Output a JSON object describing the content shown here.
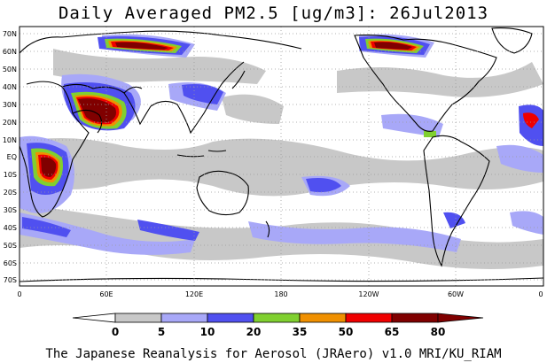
{
  "title": "Daily Averaged PM2.5 [ug/m3]: 26Jul2013",
  "footer": "The Japanese Reanalysis for Aerosol (JRAero) v1.0 MRI/KU_RIAM",
  "lat_labels": [
    "70N",
    "60N",
    "50N",
    "40N",
    "30N",
    "20N",
    "10N",
    "EQ",
    "10S",
    "20S",
    "30S",
    "40S",
    "50S",
    "60S",
    "70S"
  ],
  "lon_labels": [
    "0",
    "60E",
    "120E",
    "180",
    "120W",
    "60W",
    "0"
  ],
  "colorbar": {
    "labels": [
      "0",
      "5",
      "10",
      "20",
      "35",
      "50",
      "65",
      "80"
    ],
    "colors": [
      "#ffffff",
      "#c8c8c8",
      "#a8a8f8",
      "#5050f0",
      "#80d030",
      "#f09000",
      "#f00000",
      "#800000"
    ]
  },
  "colors": {
    "land_outline": "#000000",
    "grid": "#9a9a9a",
    "band_5_10": "#c8c8c8",
    "band_10_20": "#a8a8f8",
    "band_20_35": "#5050f0",
    "band_35_50": "#80d030",
    "band_50_65": "#f09000",
    "band_65_80": "#f00000",
    "band_80_plus": "#800000"
  }
}
